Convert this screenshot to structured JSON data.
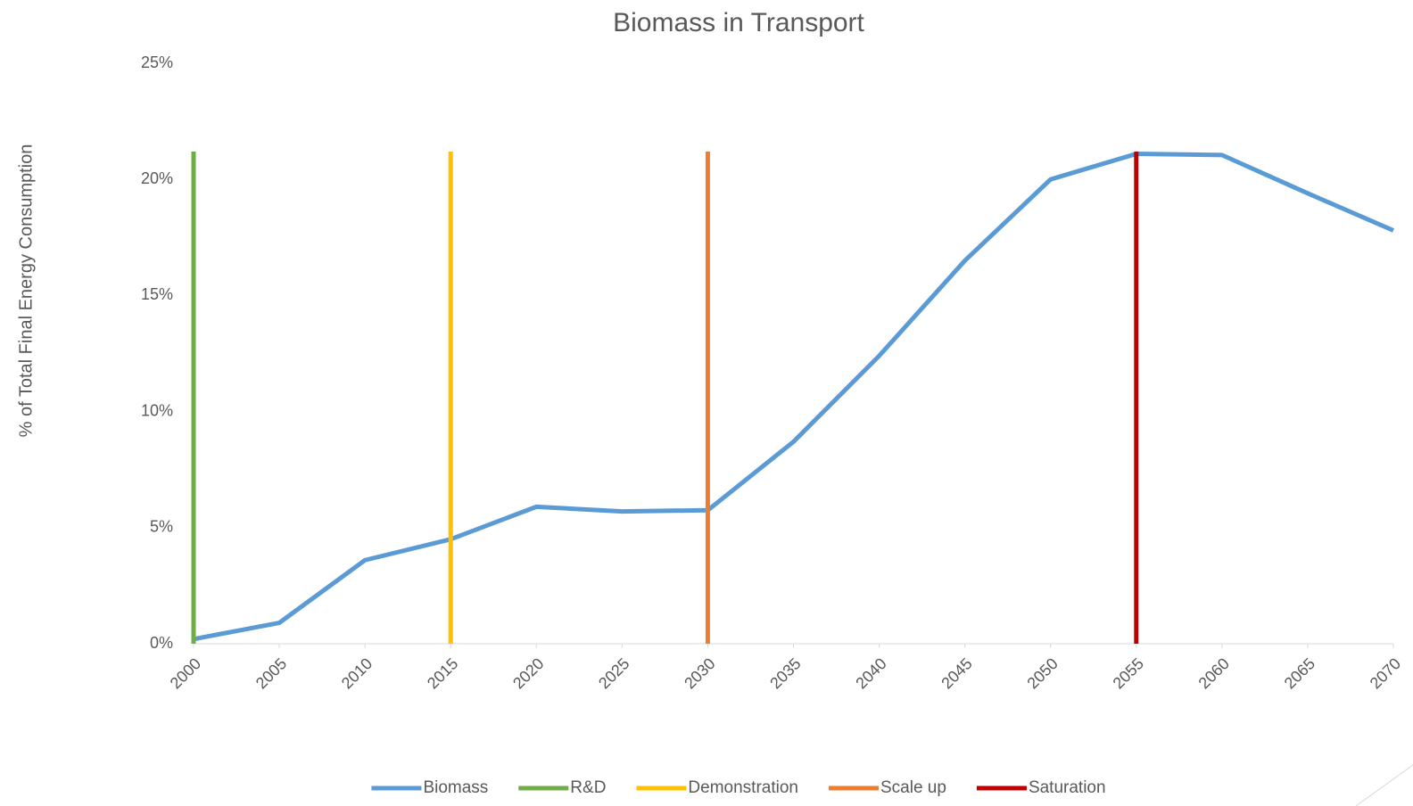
{
  "chart_data": {
    "type": "line",
    "title": "Biomass in Transport",
    "y_label": "% of Total Final Energy Consumption",
    "xlim": [
      2000,
      2070
    ],
    "xticks": [
      2000,
      2005,
      2010,
      2015,
      2020,
      2025,
      2030,
      2035,
      2040,
      2045,
      2050,
      2055,
      2060,
      2065,
      2070
    ],
    "ylim": [
      0,
      25
    ],
    "yticks": [
      {
        "value": 0,
        "label": "0%"
      },
      {
        "value": 5,
        "label": "5%"
      },
      {
        "value": 10,
        "label": "10%"
      },
      {
        "value": 15,
        "label": "15%"
      },
      {
        "value": 20,
        "label": "20%"
      },
      {
        "value": 25,
        "label": "25%"
      }
    ],
    "grid": false,
    "legend": "bottom",
    "series": [
      {
        "name": "Biomass",
        "color": "#5b9bd5",
        "x": [
          2000,
          2005,
          2010,
          2015,
          2020,
          2025,
          2030,
          2035,
          2040,
          2045,
          2050,
          2055,
          2060,
          2065,
          2070
        ],
        "values": [
          0.2,
          0.9,
          3.6,
          4.5,
          5.9,
          5.7,
          5.75,
          8.7,
          12.4,
          16.5,
          20.0,
          21.1,
          21.05,
          19.4,
          17.8
        ]
      },
      {
        "name": "R&D",
        "color": "#70ad47",
        "x": [
          2000,
          2000
        ],
        "values": [
          0,
          21.2
        ]
      },
      {
        "name": "Demonstration",
        "color": "#ffc000",
        "x": [
          2015,
          2015
        ],
        "values": [
          0,
          21.2
        ]
      },
      {
        "name": "Scale up",
        "color": "#ed7d31",
        "x": [
          2030,
          2030
        ],
        "values": [
          0,
          21.2
        ]
      },
      {
        "name": "Saturation",
        "color": "#c00000",
        "x": [
          2055,
          2055
        ],
        "values": [
          0,
          21.2
        ]
      }
    ]
  }
}
